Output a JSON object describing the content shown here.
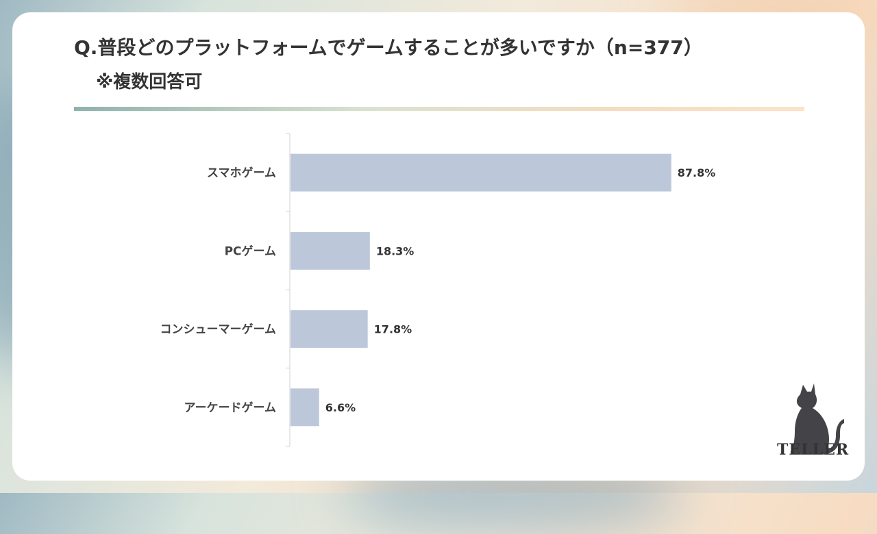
{
  "header": {
    "title": "Q.普段どのプラットフォームでゲームすることが多いですか（n=377）",
    "subtitle": "※複数回答可"
  },
  "logo": {
    "text": "TELLER",
    "icon": "cat-silhouette-icon"
  },
  "colors": {
    "bar": "#bcc8da",
    "axis": "#d0d0d0",
    "text": "#444444"
  },
  "chart_data": {
    "type": "bar",
    "orientation": "horizontal",
    "categories": [
      "スマホゲーム",
      "PCゲーム",
      "コンシューマーゲーム",
      "アーケードゲーム"
    ],
    "values": [
      87.8,
      18.3,
      17.8,
      6.6
    ],
    "value_labels": [
      "87.8%",
      "18.3%",
      "17.8%",
      "6.6%"
    ],
    "xlim": [
      0,
      100
    ],
    "grid": false,
    "legend": "none"
  }
}
